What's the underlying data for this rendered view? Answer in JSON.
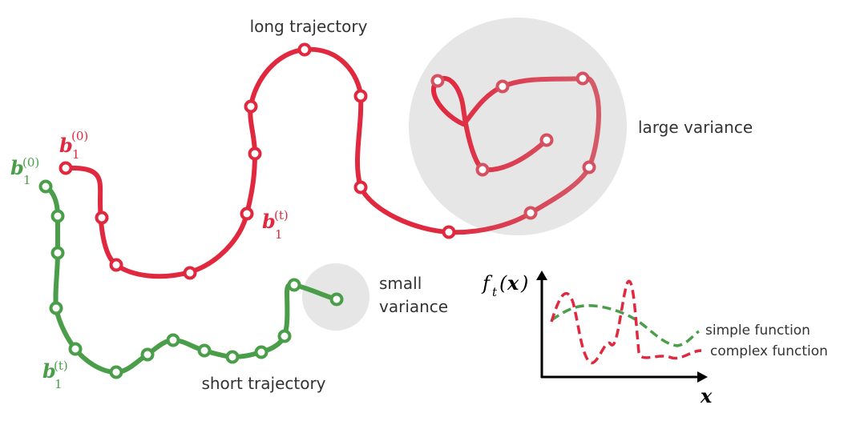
{
  "labels": {
    "long_trajectory": "long trajectory",
    "short_trajectory": "short trajectory",
    "large_variance": "large variance",
    "small_variance_line1": "small",
    "small_variance_line2": "variance",
    "simple_function": "simple function",
    "complex_function": "complex function"
  },
  "math": {
    "b_symbol": "b",
    "subscript_1": "1",
    "sup_zero": "(0)",
    "sup_t": "(t)",
    "f_symbol": "f",
    "f_subscript": "t",
    "f_arg_open": "(",
    "x_symbol": "x",
    "f_arg_close": ")"
  },
  "colors": {
    "red": "#e0283f",
    "red_faded": "#d55060",
    "green": "#4a9e4a",
    "variance_fill": "#e6e6e6",
    "axis": "#000000"
  }
}
